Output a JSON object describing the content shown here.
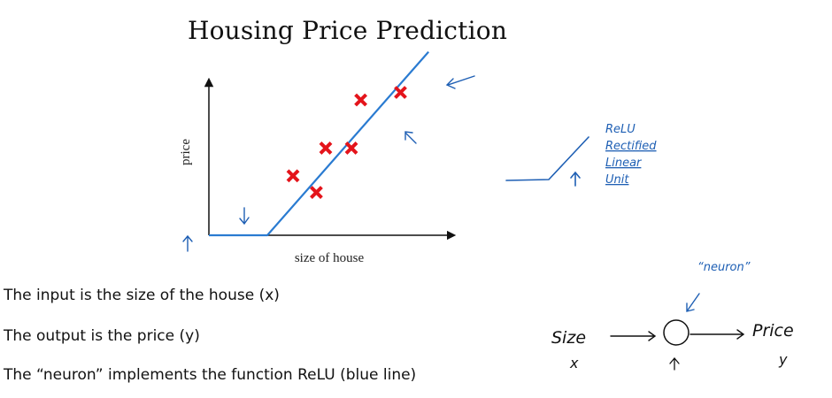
{
  "chart_data": {
    "type": "scatter",
    "title": "Housing Price Prediction",
    "xlabel": "size of house",
    "ylabel": "price",
    "xlim": [
      0,
      10
    ],
    "ylim": [
      0,
      10
    ],
    "points": [
      {
        "x": 3.6,
        "y": 3.95
      },
      {
        "x": 4.6,
        "y": 2.85
      },
      {
        "x": 5.0,
        "y": 5.8
      },
      {
        "x": 6.1,
        "y": 5.8
      },
      {
        "x": 6.5,
        "y": 9.0
      },
      {
        "x": 8.2,
        "y": 9.5
      }
    ],
    "fit_line": [
      {
        "x": 0,
        "y": 0
      },
      {
        "x": 2.5,
        "y": 0
      },
      {
        "x": 9.4,
        "y": 12.2
      }
    ],
    "point_color": "#e4141b",
    "line_color": "#2a7bd1"
  },
  "relu_annotation": {
    "lines": [
      "ReLU",
      "Rectified",
      "Linear",
      "Unit"
    ]
  },
  "neuron_diagram": {
    "neuron_label": "“neuron”",
    "input_label": "Size",
    "input_var": "x",
    "output_label": "Price",
    "output_var": "y"
  },
  "captions": [
    "The input is the size of the house (x)",
    "The output is the price (y)",
    "The “neuron” implements the function ReLU (blue line)"
  ],
  "colors": {
    "ink_blue": "#1e5fb4",
    "ink_black": "#111111"
  }
}
